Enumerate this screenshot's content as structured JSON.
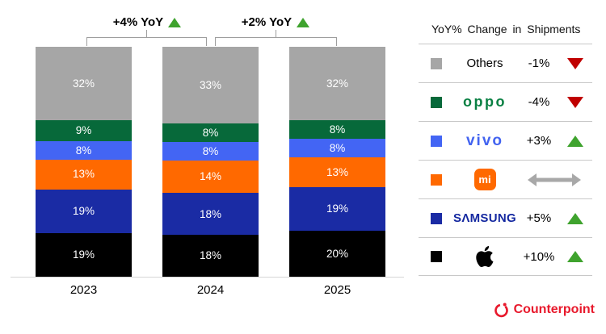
{
  "chart_data": {
    "type": "bar",
    "subtype": "100%-stacked",
    "categories": [
      "2023",
      "2024",
      "2025"
    ],
    "series": [
      {
        "name": "Others",
        "color": "#a6a6a6",
        "values": [
          32,
          33,
          32
        ]
      },
      {
        "name": "OPPO",
        "color": "#07693a",
        "values": [
          9,
          8,
          8
        ]
      },
      {
        "name": "vivo",
        "color": "#4365f4",
        "values": [
          8,
          8,
          8
        ]
      },
      {
        "name": "Xiaomi",
        "color": "#ff6900",
        "values": [
          13,
          14,
          13
        ]
      },
      {
        "name": "Samsung",
        "color": "#1a2ba4",
        "values": [
          19,
          18,
          19
        ]
      },
      {
        "name": "Apple",
        "color": "#000000",
        "values": [
          19,
          18,
          20
        ]
      }
    ],
    "unit": "%",
    "ylim": [
      0,
      100
    ],
    "legend_position": "right",
    "annotations": [
      {
        "label": "+4% YoY",
        "direction": "up",
        "between": [
          "2023",
          "2024"
        ]
      },
      {
        "label": "+2% YoY",
        "direction": "up",
        "between": [
          "2024",
          "2025"
        ]
      }
    ]
  },
  "legend": {
    "title": "YoY% Change in Shipments",
    "rows": [
      {
        "brand": "Others",
        "logo_text": "Others",
        "change": "-1%",
        "direction": "down",
        "swatch": "#a6a6a6"
      },
      {
        "brand": "OPPO",
        "logo_text": "oppo",
        "change": "-4%",
        "direction": "down",
        "swatch": "#07693a"
      },
      {
        "brand": "vivo",
        "logo_text": "vivo",
        "change": "+3%",
        "direction": "up",
        "swatch": "#4365f4"
      },
      {
        "brand": "Xiaomi",
        "logo_text": "mi",
        "change": "",
        "direction": "flat",
        "swatch": "#ff6900"
      },
      {
        "brand": "Samsung",
        "logo_text": "SΛMSUNG",
        "change": "+5%",
        "direction": "up",
        "swatch": "#1a2ba4"
      },
      {
        "brand": "Apple",
        "logo_text": "",
        "change": "+10%",
        "direction": "up",
        "swatch": "#000000"
      }
    ]
  },
  "branding": {
    "logo_text": "Counterpoint"
  },
  "colors": {
    "up_triangle": "#3fa32e",
    "down_triangle": "#c00000",
    "flat_arrow": "#a8a8a8",
    "counterpoint_red": "#e8192c",
    "oppo_logo_green": "#0a8043",
    "vivo_logo_blue": "#4263f0",
    "samsung_logo_blue": "#1428a0",
    "xiaomi_orange": "#ff6900",
    "axis_line": "#d6d6d6"
  }
}
